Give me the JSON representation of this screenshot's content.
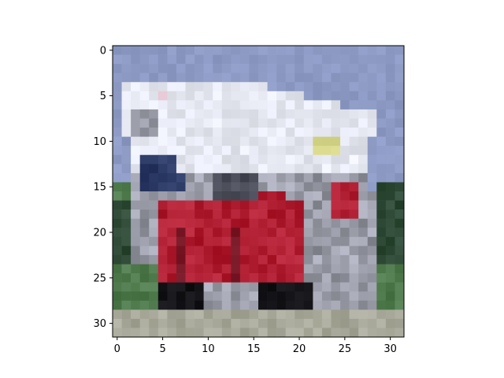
{
  "figure": {
    "image_description": "Low-resolution 32x32 pixelated photo of a red and white fire truck on a road with green grass and a blue-grey sky",
    "grid_size": [
      32,
      32
    ]
  },
  "chart_data": {
    "type": "image",
    "title": "",
    "xlabel": "",
    "ylabel": "",
    "xlim": [
      -0.5,
      31.5
    ],
    "ylim": [
      31.5,
      -0.5
    ],
    "x_ticks": [
      0,
      5,
      10,
      15,
      20,
      25,
      30
    ],
    "x_tick_labels": [
      "0",
      "5",
      "10",
      "15",
      "20",
      "25",
      "30"
    ],
    "y_ticks": [
      0,
      5,
      10,
      15,
      20,
      25,
      30
    ],
    "y_tick_labels": [
      "0",
      "5",
      "10",
      "15",
      "20",
      "25",
      "30"
    ],
    "palette": {
      "sky": "#8c9ac4",
      "white_body": "#e6e8f2",
      "grey": "#9a9ca8",
      "red": "#b01e32",
      "dark_red": "#7a1a28",
      "black": "#141418",
      "green": "#4f7a4c",
      "dark_green": "#2e4a36",
      "road": "#a8a89a",
      "yellow": "#d6d68a",
      "navy": "#2c3a66"
    }
  }
}
